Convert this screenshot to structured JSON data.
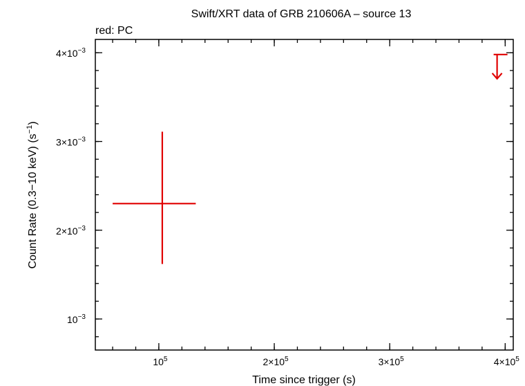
{
  "chart_data": {
    "type": "scatter",
    "title": "Swift/XRT data of GRB 210606A – source 13",
    "legend_text": "red: PC",
    "xlabel": "Time since trigger (s)",
    "ylabel": "Count Rate (0.3−10 keV) (s",
    "ylabel_sup": "−1",
    "ylabel_end": ")",
    "xlim": [
      45000,
      407000
    ],
    "ylim": [
      0.00065,
      0.00415
    ],
    "x_ticks": [
      {
        "value": 100000,
        "mantissa": "10",
        "exp": "5"
      },
      {
        "value": 200000,
        "mantissa": "2×10",
        "exp": "5"
      },
      {
        "value": 300000,
        "mantissa": "3×10",
        "exp": "5"
      },
      {
        "value": 400000,
        "mantissa": "4×10",
        "exp": "5"
      }
    ],
    "y_ticks": [
      {
        "value": 0.001,
        "mantissa": "10",
        "exp": "−3"
      },
      {
        "value": 0.002,
        "mantissa": "2×10",
        "exp": "−3"
      },
      {
        "value": 0.003,
        "mantissa": "3×10",
        "exp": "−3"
      },
      {
        "value": 0.004,
        "mantissa": "4×10",
        "exp": "−3"
      }
    ],
    "x_minor_step": 20000,
    "y_minor_step": 0.0002,
    "series": [
      {
        "color": "#e00000",
        "points": [
          {
            "x": 103000,
            "y": 0.0023,
            "xerr": [
              60000,
              132000
            ],
            "yerr": [
              0.00162,
              0.00311
            ]
          }
        ],
        "upper_limits": [
          {
            "x": 393000,
            "y": 0.00398,
            "xerr": [
              390000,
              402000
            ]
          }
        ]
      }
    ]
  }
}
